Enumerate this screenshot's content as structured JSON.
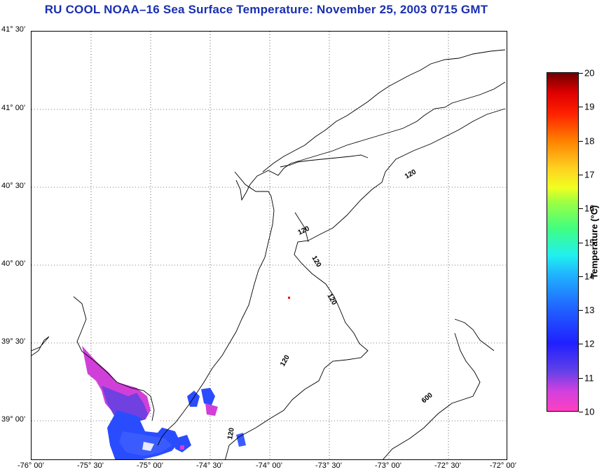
{
  "title": "RU COOL  NOAA–16  Sea Surface Temperature:  November 25, 2003 0715 GMT",
  "latitude_labels": [
    "41° 30’",
    "41° 00’",
    "40° 30’",
    "40° 00’",
    "39° 30’",
    "39° 00’"
  ],
  "longitude_labels": [
    "-76° 00’",
    "-75° 30’",
    "-75° 00’",
    "-74° 30’",
    "-74° 00’",
    "-73° 30’",
    "-73° 00’",
    "-72° 30’",
    "-72° 00’"
  ],
  "colorbar": {
    "title": "Temperature (°C)",
    "min": 10,
    "max": 20,
    "tick_labels": [
      "20",
      "19",
      "18",
      "17",
      "16",
      "15",
      "14",
      "13",
      "12",
      "11",
      "10"
    ]
  },
  "bathymetry_labels": [
    "120",
    "120",
    "120",
    "120",
    "120",
    "120",
    "600"
  ]
}
